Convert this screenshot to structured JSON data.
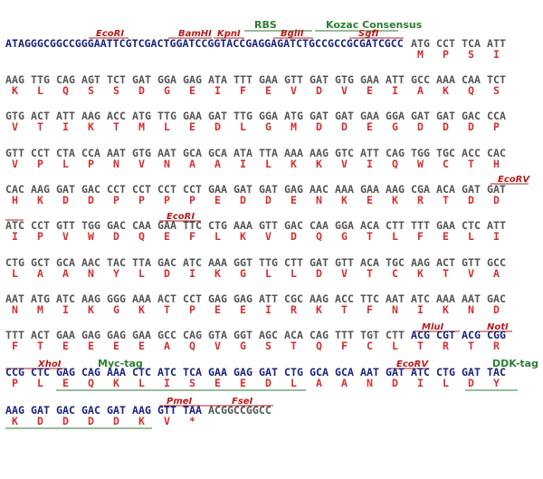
{
  "annotations": [
    "RBS",
    "Kozac Consensus",
    "EcoRI",
    "BamHI",
    "KpnI",
    "BglII",
    "SgfI",
    "EcoRV",
    "EcoRI",
    "MluI",
    "NotI",
    "XhoI",
    "Myc-tag",
    "EcoRV",
    "DDK-tag",
    "PmeI",
    "FseI"
  ],
  "leader": "ATAGGGCGGCCGGGAATTCGTCGACTGGATCCGGTACCGAGGAGATCTGCCGCCGCGATCGCC",
  "rows": [
    {
      "codons": [
        "ATG",
        "CCT",
        "TCA",
        "ATT"
      ],
      "aa": [
        "M",
        "P",
        "S",
        "I"
      ]
    },
    {
      "codons": [
        "AAG",
        "TTG",
        "CAG",
        "AGT",
        "TCT",
        "GAT",
        "GGA",
        "GAG",
        "ATA",
        "TTT",
        "GAA",
        "GTT",
        "GAT",
        "GTG",
        "GAA",
        "ATT",
        "GCC",
        "AAA",
        "CAA",
        "TCT"
      ],
      "aa": [
        "K",
        "L",
        "Q",
        "S",
        "S",
        "D",
        "G",
        "E",
        "I",
        "F",
        "E",
        "V",
        "D",
        "V",
        "E",
        "I",
        "A",
        "K",
        "Q",
        "S"
      ]
    },
    {
      "codons": [
        "GTG",
        "ACT",
        "ATT",
        "AAG",
        "ACC",
        "ATG",
        "TTG",
        "GAA",
        "GAT",
        "TTG",
        "GGA",
        "ATG",
        "GAT",
        "GAT",
        "GAA",
        "GGA",
        "GAT",
        "GAT",
        "GAC",
        "CCA"
      ],
      "aa": [
        "V",
        "T",
        "I",
        "K",
        "T",
        "M",
        "L",
        "E",
        "D",
        "L",
        "G",
        "M",
        "D",
        "D",
        "E",
        "G",
        "D",
        "D",
        "D",
        "P"
      ]
    },
    {
      "codons": [
        "GTT",
        "CCT",
        "CTA",
        "CCA",
        "AAT",
        "GTG",
        "AAT",
        "GCA",
        "GCA",
        "ATA",
        "TTA",
        "AAA",
        "AAG",
        "GTC",
        "ATT",
        "CAG",
        "TGG",
        "TGC",
        "ACC",
        "CAC"
      ],
      "aa": [
        "V",
        "P",
        "L",
        "P",
        "N",
        "V",
        "N",
        "A",
        "A",
        "I",
        "L",
        "K",
        "K",
        "V",
        "I",
        "Q",
        "W",
        "C",
        "T",
        "H"
      ]
    },
    {
      "codons": [
        "CAC",
        "AAG",
        "GAT",
        "GAC",
        "CCT",
        "CCT",
        "CCT",
        "CCT",
        "GAA",
        "GAT",
        "GAT",
        "GAG",
        "AAC",
        "AAA",
        "GAA",
        "AAG",
        "CGA",
        "ACA",
        "GAT",
        "GAT"
      ],
      "aa": [
        "H",
        "K",
        "D",
        "D",
        "P",
        "P",
        "P",
        "P",
        "E",
        "D",
        "D",
        "E",
        "N",
        "K",
        "E",
        "K",
        "R",
        "T",
        "D",
        "D"
      ]
    },
    {
      "codons": [
        "ATC",
        "CCT",
        "GTT",
        "TGG",
        "GAC",
        "CAA",
        "GAA",
        "TTC",
        "CTG",
        "AAA",
        "GTT",
        "GAC",
        "CAA",
        "GGA",
        "ACA",
        "CTT",
        "TTT",
        "GAA",
        "CTC",
        "ATT"
      ],
      "aa": [
        "I",
        "P",
        "V",
        "W",
        "D",
        "Q",
        "E",
        "F",
        "L",
        "K",
        "V",
        "D",
        "Q",
        "G",
        "T",
        "L",
        "F",
        "E",
        "L",
        "I"
      ]
    },
    {
      "codons": [
        "CTG",
        "GCT",
        "GCA",
        "AAC",
        "TAC",
        "TTA",
        "GAC",
        "ATC",
        "AAA",
        "GGT",
        "TTG",
        "CTT",
        "GAT",
        "GTT",
        "ACA",
        "TGC",
        "AAG",
        "ACT",
        "GTT",
        "GCC"
      ],
      "aa": [
        "L",
        "A",
        "A",
        "N",
        "Y",
        "L",
        "D",
        "I",
        "K",
        "G",
        "L",
        "L",
        "D",
        "V",
        "T",
        "C",
        "K",
        "T",
        "V",
        "A"
      ]
    },
    {
      "codons": [
        "AAT",
        "ATG",
        "ATC",
        "AAG",
        "GGG",
        "AAA",
        "ACT",
        "CCT",
        "GAG",
        "GAG",
        "ATT",
        "CGC",
        "AAG",
        "ACC",
        "TTC",
        "AAT",
        "ATC",
        "AAA",
        "AAT",
        "GAC"
      ],
      "aa": [
        "N",
        "M",
        "I",
        "K",
        "G",
        "K",
        "T",
        "P",
        "E",
        "E",
        "I",
        "R",
        "K",
        "T",
        "F",
        "N",
        "I",
        "K",
        "N",
        "D"
      ]
    },
    {
      "codons": [
        "TTT",
        "ACT",
        "GAA",
        "GAG",
        "GAG",
        "GAA",
        "GCC",
        "CAG",
        "GTA",
        "GGT",
        "AGC",
        "ACA",
        "CAG",
        "TTT",
        "TGT",
        "CTT",
        "ACG",
        "CGT",
        "ACG",
        "CGG"
      ],
      "aa": [
        "F",
        "T",
        "E",
        "E",
        "E",
        "E",
        "A",
        "Q",
        "V",
        "G",
        "S",
        "T",
        "Q",
        "F",
        "C",
        "L",
        "T",
        "R",
        "T",
        "R"
      ]
    },
    {
      "codons": [
        "CCG",
        "CTC",
        "GAG",
        "CAG",
        "AAA",
        "CTC",
        "ATC",
        "TCA",
        "GAA",
        "GAG",
        "GAT",
        "CTG",
        "GCA",
        "GCA",
        "AAT",
        "GAT",
        "ATC",
        "CTG",
        "GAT",
        "TAC"
      ],
      "aa": [
        "P",
        "L",
        "E",
        "Q",
        "K",
        "L",
        "I",
        "S",
        "E",
        "E",
        "D",
        "L",
        "A",
        "A",
        "N",
        "D",
        "I",
        "L",
        "D",
        "Y"
      ]
    },
    {
      "codons": [
        "AAG",
        "GAT",
        "GAC",
        "GAC",
        "GAT",
        "AAG",
        "GTT",
        "TAA",
        "ACGGCCGGCC"
      ],
      "aa": [
        "K",
        "D",
        "D",
        "D",
        "D",
        "K",
        "V",
        "*"
      ]
    }
  ]
}
